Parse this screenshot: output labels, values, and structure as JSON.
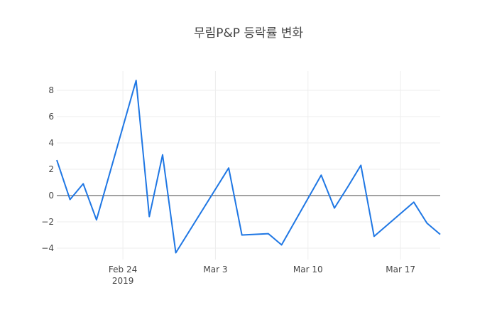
{
  "chart_data": {
    "type": "line",
    "title": "무림P&P 등락률 변화",
    "xlabel": "",
    "ylabel": "",
    "x": [
      "2019-02-19",
      "2019-02-20",
      "2019-02-21",
      "2019-02-22",
      "2019-02-25",
      "2019-02-26",
      "2019-02-27",
      "2019-02-28",
      "2019-03-04",
      "2019-03-05",
      "2019-03-07",
      "2019-03-08",
      "2019-03-11",
      "2019-03-12",
      "2019-03-13",
      "2019-03-14",
      "2019-03-15",
      "2019-03-18",
      "2019-03-19",
      "2019-03-20"
    ],
    "series": [
      {
        "name": "등락률",
        "color": "#1f77e4",
        "values": [
          2.7,
          -0.3,
          0.9,
          -1.85,
          8.75,
          -1.6,
          3.1,
          -4.35,
          2.1,
          -3.0,
          -2.9,
          -3.75,
          1.55,
          -0.95,
          0.65,
          2.3,
          -3.1,
          -0.5,
          -2.1,
          -2.95
        ]
      }
    ],
    "x_ticks": [
      {
        "date": "2019-02-24",
        "label": "Feb 24",
        "sublabel": "2019"
      },
      {
        "date": "2019-03-03",
        "label": "Mar 3",
        "sublabel": ""
      },
      {
        "date": "2019-03-10",
        "label": "Mar 10",
        "sublabel": ""
      },
      {
        "date": "2019-03-17",
        "label": "Mar 17",
        "sublabel": ""
      }
    ],
    "y_ticks": [
      8,
      6,
      4,
      2,
      0,
      -2,
      -4
    ],
    "y_tick_labels": [
      "8",
      "6",
      "4",
      "2",
      "0",
      "−2",
      "−4"
    ],
    "xlim": [
      "2019-02-19",
      "2019-03-20"
    ],
    "ylim": [
      -4.8,
      9.4
    ],
    "grid": true,
    "zeroline": true,
    "legend": false
  }
}
